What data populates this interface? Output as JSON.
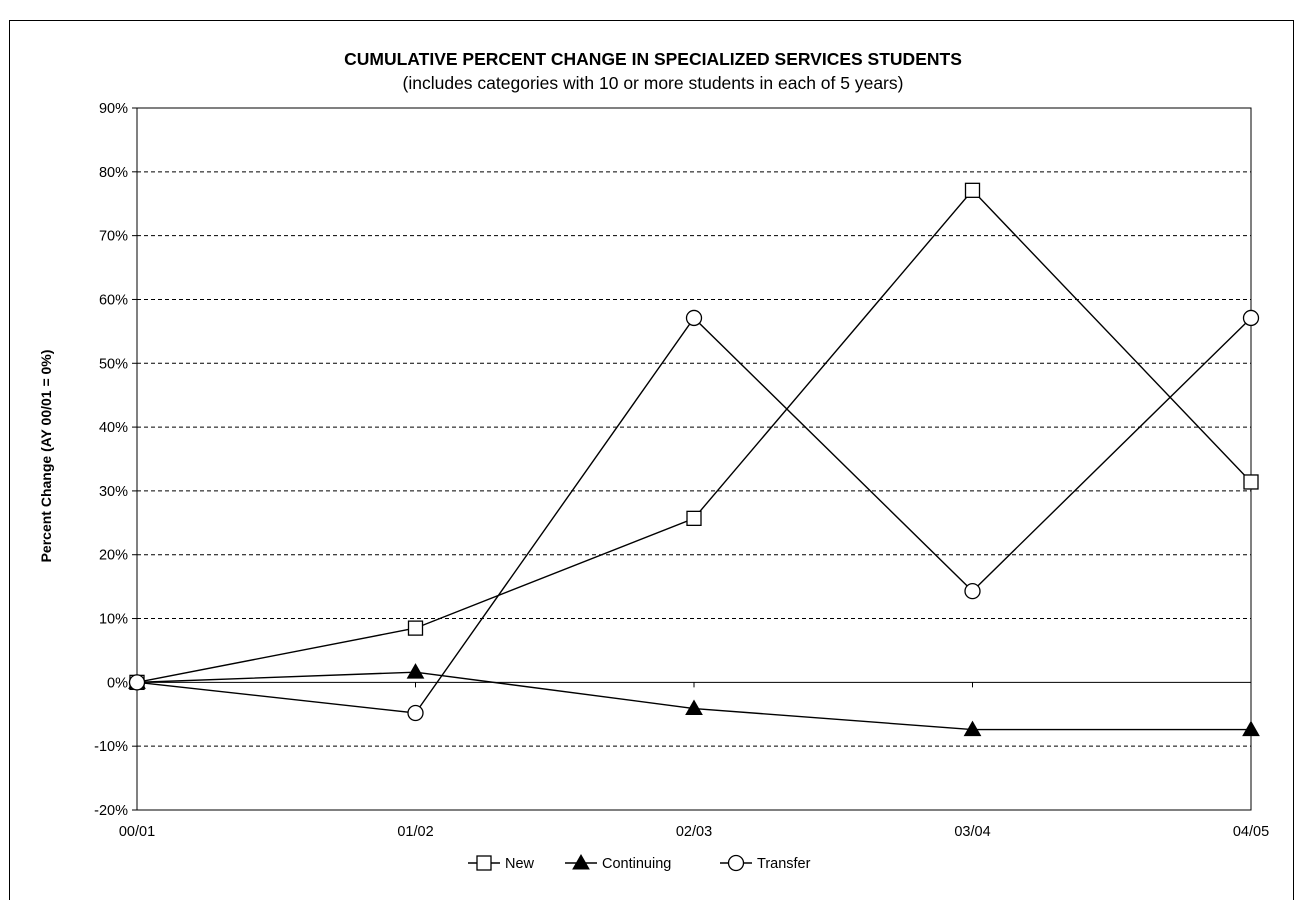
{
  "chart_data": {
    "type": "line",
    "title": "CUMULATIVE PERCENT CHANGE IN SPECIALIZED SERVICES STUDENTS",
    "subtitle": "(includes categories with 10 or more students in each of 5 years)",
    "xlabel": "",
    "ylabel": "Percent Change (AY 00/01 = 0%)",
    "categories": [
      "00/01",
      "01/02",
      "02/03",
      "03/04",
      "04/05"
    ],
    "ylim": [
      -20,
      90
    ],
    "yticks": [
      -20,
      -10,
      0,
      10,
      20,
      30,
      40,
      50,
      60,
      70,
      80,
      90
    ],
    "ytick_labels": [
      "-20%",
      "-10%",
      "0%",
      "10%",
      "20%",
      "30%",
      "40%",
      "50%",
      "60%",
      "70%",
      "80%",
      "90%"
    ],
    "grid": "horizontal dashed",
    "legend_position": "bottom",
    "series": [
      {
        "name": "New",
        "marker": "square-open",
        "color": "#000000",
        "values": [
          0,
          8.5,
          25.7,
          77.1,
          31.4
        ]
      },
      {
        "name": "Continuing",
        "marker": "triangle-filled",
        "color": "#000000",
        "values": [
          0,
          1.6,
          -4.1,
          -7.4,
          -7.4
        ]
      },
      {
        "name": "Transfer",
        "marker": "circle-open",
        "color": "#000000",
        "values": [
          0,
          -4.8,
          57.1,
          14.3,
          57.1
        ]
      }
    ]
  }
}
